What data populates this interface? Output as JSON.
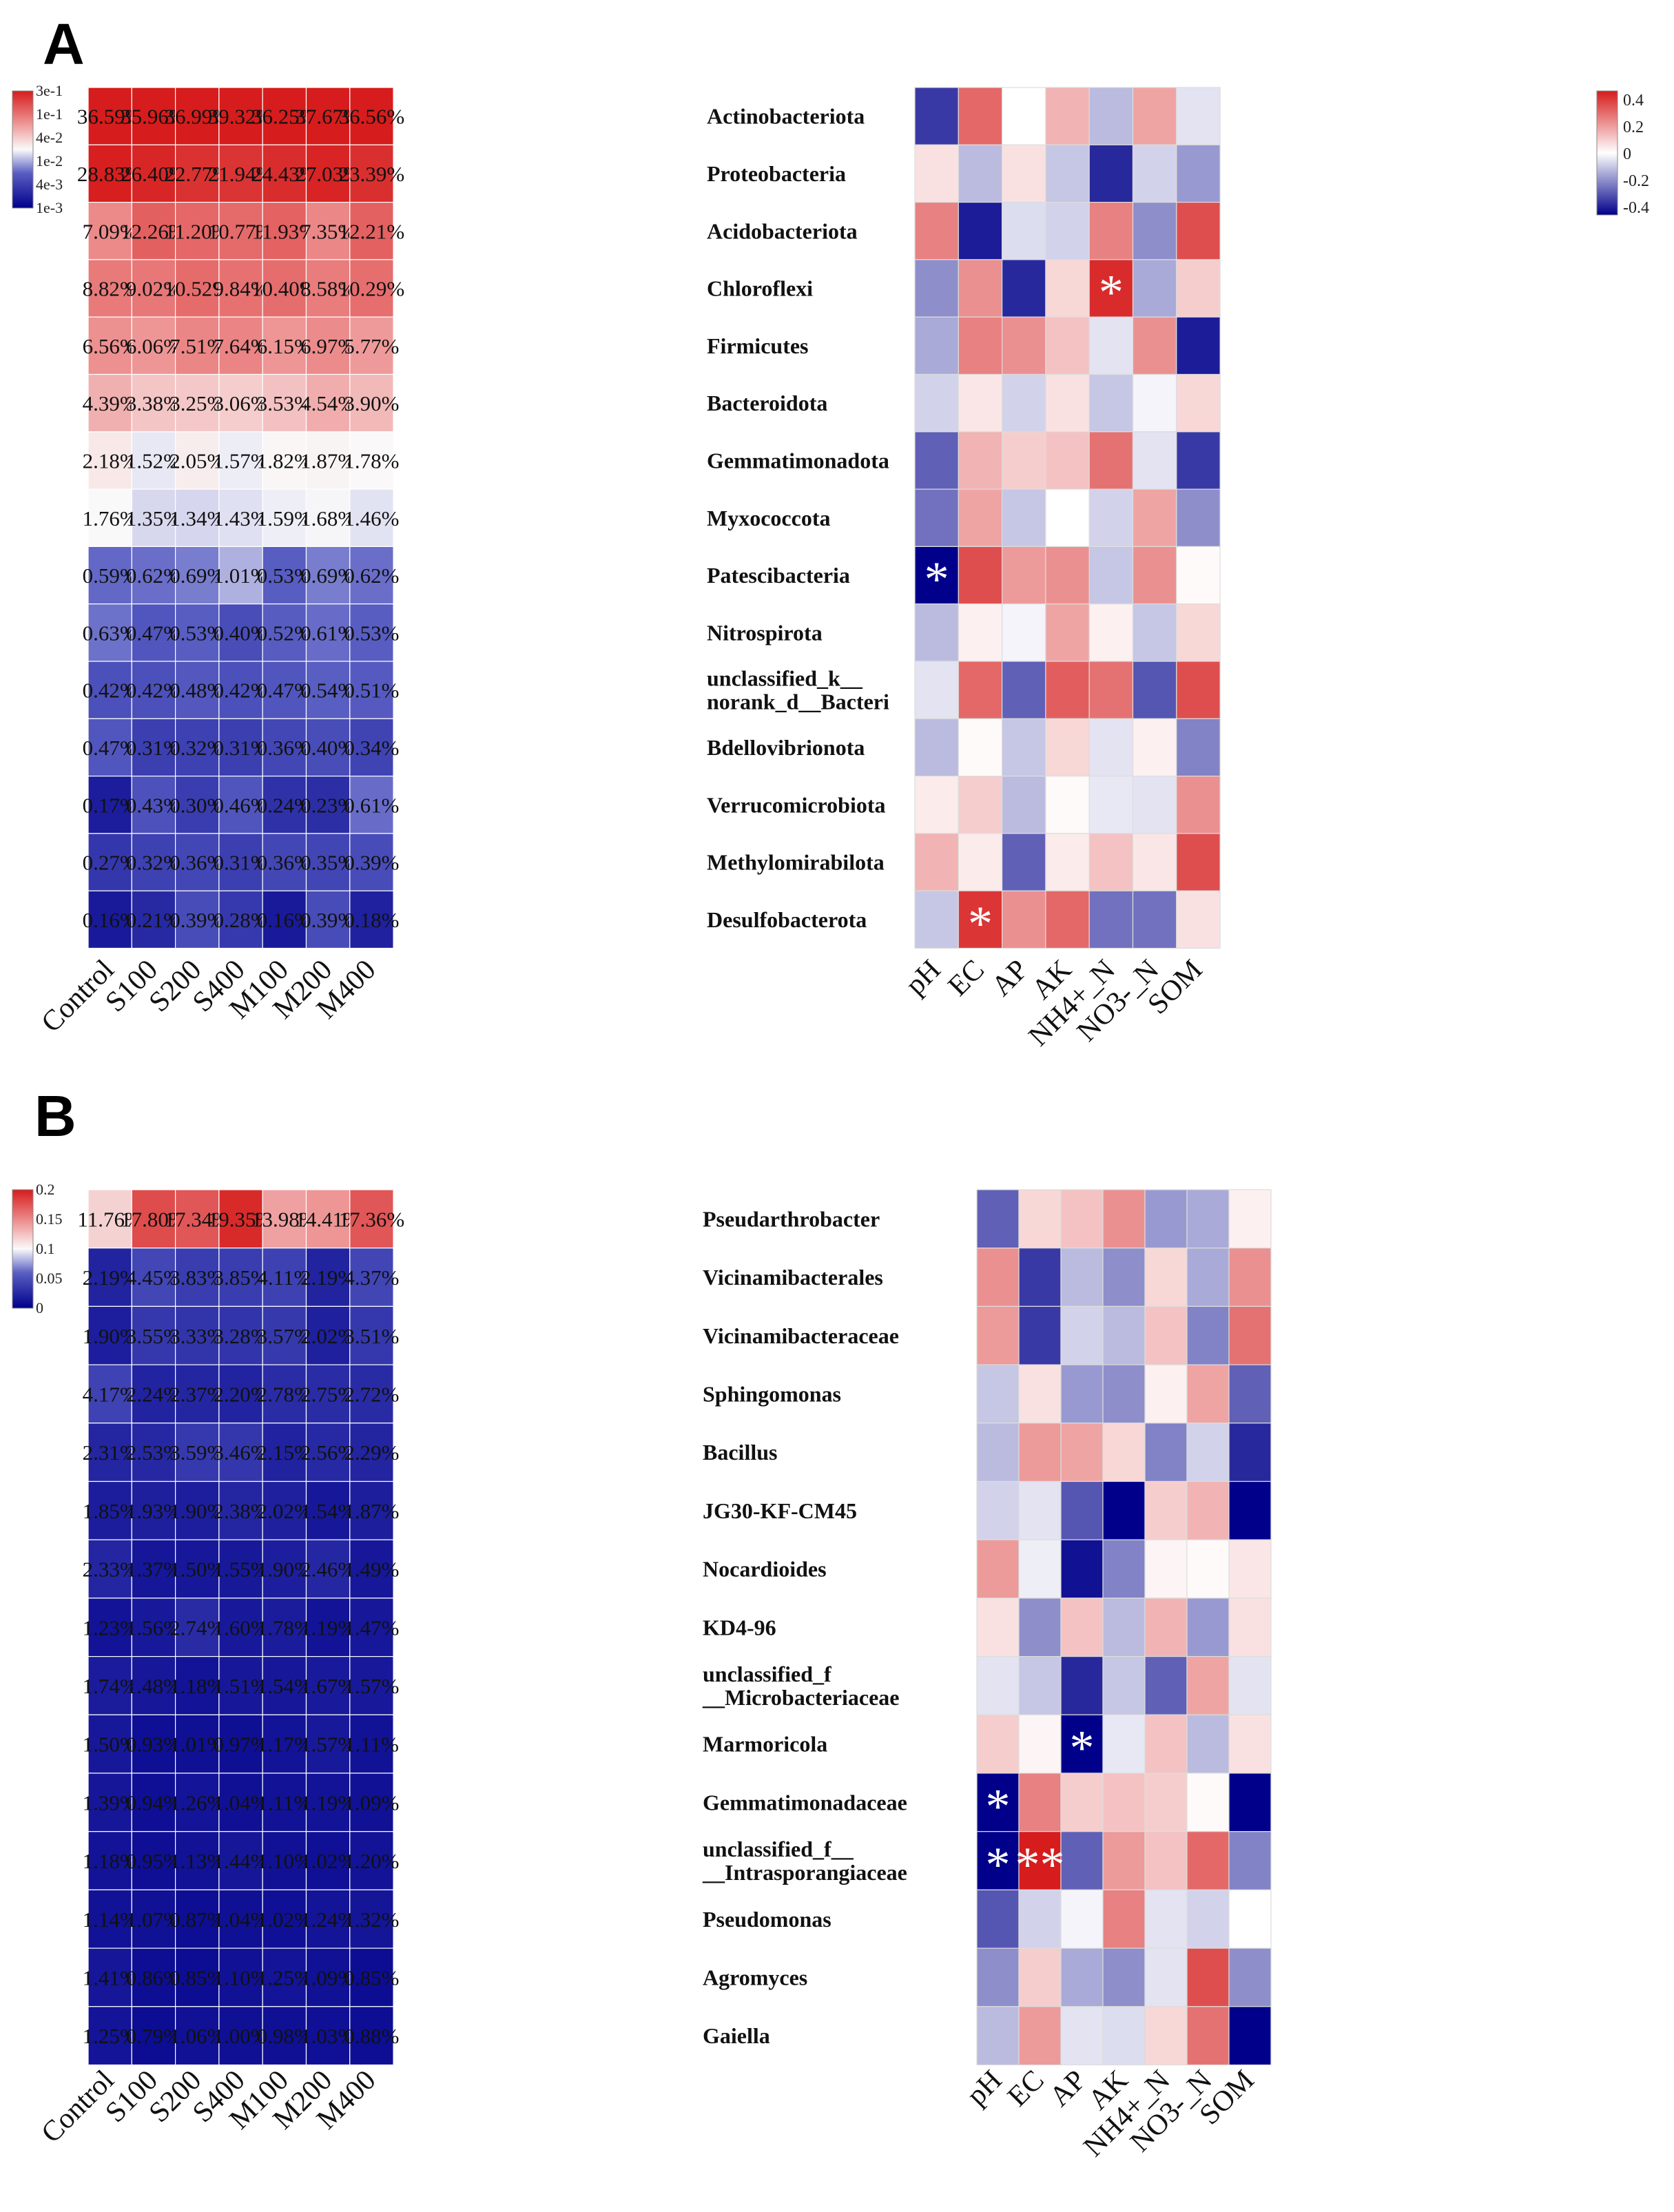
{
  "figure": {
    "panels": [
      {
        "label": "A",
        "columns": [
          "Control",
          "S100",
          "S200",
          "S400",
          "M100",
          "M200",
          "M400"
        ],
        "rows": [
          "Actinobacteriota",
          "Proteobacteria",
          "Acidobacteriota",
          "Chloroflexi",
          "Firmicutes",
          "Bacteroidota",
          "Gemmatimonadota",
          "Myxococcota",
          "Patescibacteria",
          "Nitrospirota",
          "unclassified_k__ norank_d__Bacteri",
          "Bdellovibrionota",
          "Verrucomicrobiota",
          "Methylomirabilota",
          "Desulfobacterota"
        ],
        "abundance_legend": [
          "3e-1",
          "1e-1",
          "4e-2",
          "1e-2",
          "4e-3",
          "1e-3"
        ],
        "abundance_text": [
          [
            "36.59%",
            "35.96%",
            "36.99%",
            "39.32%",
            "36.25%",
            "37.67%",
            "36.56%"
          ],
          [
            "28.83%",
            "26.40%",
            "22.77%",
            "21.94%",
            "24.43%",
            "27.03%",
            "23.39%"
          ],
          [
            "7.09%",
            "12.26%",
            "11.20%",
            "10.77%",
            "11.93%",
            "7.35%",
            "12.21%"
          ],
          [
            "8.82%",
            "9.02%",
            "10.52%",
            "9.84%",
            "10.40%",
            "8.58%",
            "10.29%"
          ],
          [
            "6.56%",
            "6.06%",
            "7.51%",
            "7.64%",
            "6.15%",
            "6.97%",
            "5.77%"
          ],
          [
            "4.39%",
            "3.38%",
            "3.25%",
            "3.06%",
            "3.53%",
            "4.54%",
            "3.90%"
          ],
          [
            "2.18%",
            "1.52%",
            "2.05%",
            "1.57%",
            "1.82%",
            "1.87%",
            "1.78%"
          ],
          [
            "1.76%",
            "1.35%",
            "1.34%",
            "1.43%",
            "1.59%",
            "1.68%",
            "1.46%"
          ],
          [
            "0.59%",
            "0.62%",
            "0.69%",
            "1.01%",
            "0.53%",
            "0.69%",
            "0.62%"
          ],
          [
            "0.63%",
            "0.47%",
            "0.53%",
            "0.40%",
            "0.52%",
            "0.61%",
            "0.53%"
          ],
          [
            "0.42%",
            "0.42%",
            "0.48%",
            "0.42%",
            "0.47%",
            "0.54%",
            "0.51%"
          ],
          [
            "0.47%",
            "0.31%",
            "0.32%",
            "0.31%",
            "0.36%",
            "0.40%",
            "0.34%"
          ],
          [
            "0.17%",
            "0.43%",
            "0.30%",
            "0.46%",
            "0.24%",
            "0.23%",
            "0.61%"
          ],
          [
            "0.27%",
            "0.32%",
            "0.36%",
            "0.31%",
            "0.36%",
            "0.35%",
            "0.39%"
          ],
          [
            "0.16%",
            "0.21%",
            "0.39%",
            "0.28%",
            "0.16%",
            "0.39%",
            "0.18%"
          ]
        ],
        "env_columns": [
          "pH",
          "EC",
          "AP",
          "AK",
          "NH4+_N",
          "NO3-_N",
          "SOM"
        ],
        "corr_legend": [
          "0.4",
          "0.2",
          "0",
          "-0.2",
          "-0.4"
        ],
        "corr_range": [
          -0.45,
          0.45
        ],
        "corr": [
          [
            -0.35,
            0.3,
            0.0,
            0.15,
            -0.12,
            0.18,
            -0.05
          ],
          [
            0.06,
            -0.12,
            0.06,
            -0.1,
            -0.38,
            -0.08,
            -0.18
          ],
          [
            0.25,
            -0.4,
            -0.06,
            -0.08,
            0.25,
            -0.2,
            0.35
          ],
          [
            -0.2,
            0.22,
            -0.38,
            0.08,
            0.42,
            -0.15,
            0.1
          ],
          [
            -0.15,
            0.25,
            0.22,
            0.12,
            -0.05,
            0.22,
            -0.4
          ],
          [
            -0.08,
            0.05,
            -0.08,
            0.06,
            -0.1,
            -0.02,
            0.08
          ],
          [
            -0.28,
            0.15,
            0.1,
            0.12,
            0.28,
            -0.05,
            -0.35
          ],
          [
            -0.25,
            0.18,
            -0.1,
            0.0,
            -0.08,
            0.18,
            -0.2
          ],
          [
            -0.45,
            0.35,
            0.2,
            0.22,
            -0.1,
            0.22,
            0.01
          ],
          [
            -0.12,
            0.03,
            -0.02,
            0.18,
            0.03,
            -0.1,
            0.08
          ],
          [
            -0.05,
            0.3,
            -0.28,
            0.32,
            0.28,
            -0.3,
            0.35
          ],
          [
            -0.12,
            0.01,
            -0.1,
            0.08,
            -0.05,
            0.03,
            -0.22
          ],
          [
            0.04,
            0.1,
            -0.12,
            0.01,
            -0.04,
            -0.05,
            0.22
          ],
          [
            0.15,
            0.04,
            -0.28,
            0.04,
            0.12,
            0.05,
            0.35
          ],
          [
            -0.1,
            0.4,
            0.22,
            0.3,
            -0.25,
            -0.25,
            0.06
          ]
        ],
        "stars": [
          {
            "row": 3,
            "col": 4,
            "text": "*"
          },
          {
            "row": 8,
            "col": 0,
            "text": "*"
          },
          {
            "row": 14,
            "col": 1,
            "text": "*"
          }
        ]
      },
      {
        "label": "B",
        "columns": [
          "Control",
          "S100",
          "S200",
          "S400",
          "M100",
          "M200",
          "M400"
        ],
        "rows": [
          "Pseudarthrobacter",
          "Vicinamibacterales",
          "Vicinamibacteraceae",
          "Sphingomonas",
          "Bacillus",
          "JG30-KF-CM45",
          "Nocardioides",
          "KD4-96",
          "unclassified_f __Microbacteriaceae",
          "Marmoricola",
          "Gemmatimonadaceae",
          "unclassified_f__ __Intrasporangiaceae",
          "Pseudomonas",
          "Agromyces",
          "Gaiella"
        ],
        "abundance_legend": [
          "0.2",
          "0.15",
          "0.1",
          "0.05",
          "0"
        ],
        "abundance_text": [
          [
            "11.76%",
            "17.80%",
            "17.34%",
            "19.35%",
            "13.98%",
            "14.41%",
            "17.36%"
          ],
          [
            "2.19%",
            "4.45%",
            "3.83%",
            "3.85%",
            "4.11%",
            "2.19%",
            "4.37%"
          ],
          [
            "1.90%",
            "3.55%",
            "3.33%",
            "3.28%",
            "3.57%",
            "2.02%",
            "3.51%"
          ],
          [
            "4.17%",
            "2.24%",
            "2.37%",
            "2.20%",
            "2.78%",
            "2.75%",
            "2.72%"
          ],
          [
            "2.31%",
            "2.53%",
            "3.59%",
            "3.46%",
            "2.15%",
            "2.56%",
            "2.29%"
          ],
          [
            "1.85%",
            "1.93%",
            "1.90%",
            "2.38%",
            "2.02%",
            "1.54%",
            "1.87%"
          ],
          [
            "2.33%",
            "1.37%",
            "1.50%",
            "1.55%",
            "1.90%",
            "2.46%",
            "1.49%"
          ],
          [
            "1.23%",
            "1.56%",
            "2.74%",
            "1.60%",
            "1.78%",
            "1.19%",
            "1.47%"
          ],
          [
            "1.74%",
            "1.48%",
            "1.18%",
            "1.51%",
            "1.54%",
            "1.67%",
            "1.57%"
          ],
          [
            "1.50%",
            "0.93%",
            "1.01%",
            "0.97%",
            "1.17%",
            "1.57%",
            "1.11%"
          ],
          [
            "1.39%",
            "0.94%",
            "1.26%",
            "1.04%",
            "1.11%",
            "1.19%",
            "1.09%"
          ],
          [
            "1.18%",
            "0.95%",
            "1.13%",
            "1.44%",
            "1.10%",
            "1.02%",
            "1.20%"
          ],
          [
            "1.14%",
            "1.07%",
            "0.87%",
            "1.04%",
            "1.02%",
            "1.24%",
            "1.32%"
          ],
          [
            "1.41%",
            "0.86%",
            "0.85%",
            "1.10%",
            "1.25%",
            "1.09%",
            "0.85%"
          ],
          [
            "1.25%",
            "0.79%",
            "1.06%",
            "1.00%",
            "0.98%",
            "1.03%",
            "0.88%"
          ]
        ],
        "env_columns": [
          "pH",
          "EC",
          "AP",
          "AK",
          "NH4+_N",
          "NO3-_N",
          "SOM"
        ],
        "corr_legend": [],
        "corr_range": [
          -0.45,
          0.45
        ],
        "corr": [
          [
            -0.28,
            0.08,
            0.12,
            0.22,
            -0.18,
            -0.15,
            0.03
          ],
          [
            0.22,
            -0.35,
            -0.12,
            -0.2,
            0.08,
            -0.15,
            0.22
          ],
          [
            0.2,
            -0.35,
            -0.08,
            -0.12,
            0.12,
            -0.22,
            0.28
          ],
          [
            -0.1,
            0.06,
            -0.18,
            -0.2,
            0.03,
            0.18,
            -0.28
          ],
          [
            -0.12,
            0.2,
            0.18,
            0.08,
            -0.22,
            -0.08,
            -0.38
          ],
          [
            -0.08,
            -0.05,
            -0.3,
            -0.45,
            0.1,
            0.15,
            -0.45
          ],
          [
            0.2,
            -0.03,
            -0.42,
            -0.22,
            0.02,
            0.01,
            0.05
          ],
          [
            0.06,
            -0.2,
            0.12,
            -0.12,
            0.15,
            -0.18,
            0.06
          ],
          [
            -0.05,
            -0.1,
            -0.38,
            -0.1,
            -0.28,
            0.18,
            -0.05
          ],
          [
            0.1,
            0.02,
            -0.45,
            -0.04,
            0.12,
            -0.12,
            0.06
          ],
          [
            -0.45,
            0.25,
            0.1,
            0.12,
            0.1,
            0.01,
            -0.45
          ],
          [
            -0.45,
            0.45,
            -0.28,
            0.2,
            0.12,
            0.3,
            -0.22
          ],
          [
            -0.3,
            -0.08,
            -0.02,
            0.25,
            -0.05,
            -0.08,
            0.0
          ],
          [
            -0.2,
            0.1,
            -0.15,
            -0.2,
            -0.05,
            0.35,
            -0.2
          ],
          [
            -0.12,
            0.2,
            -0.05,
            -0.06,
            0.08,
            0.28,
            -0.45
          ]
        ],
        "stars": [
          {
            "row": 9,
            "col": 2,
            "text": "*"
          },
          {
            "row": 10,
            "col": 0,
            "text": "*"
          },
          {
            "row": 11,
            "col": 0,
            "text": "*"
          },
          {
            "row": 11,
            "col": 1,
            "text": "**"
          }
        ]
      }
    ]
  }
}
